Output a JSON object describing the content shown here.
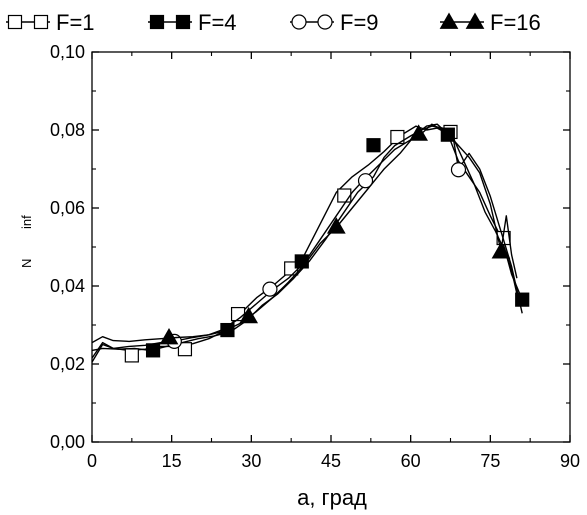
{
  "chart_data": {
    "type": "line",
    "xlabel": "a, град",
    "ylabel_fragments": [
      "N",
      "inf"
    ],
    "xlim": [
      0,
      90
    ],
    "ylim": [
      0,
      0.1
    ],
    "x_ticks": [
      0,
      15,
      30,
      45,
      60,
      75,
      90
    ],
    "x_tick_labels": [
      "0",
      "15",
      "30",
      "45",
      "60",
      "75",
      "90"
    ],
    "y_ticks": [
      0,
      0.02,
      0.04,
      0.06,
      0.08,
      0.1
    ],
    "y_tick_labels": [
      "0,00",
      "0,02",
      "0,04",
      "0,06",
      "0,08",
      "0,10"
    ],
    "grid": false,
    "legend_position": "top",
    "series": [
      {
        "name": "F=1",
        "marker": "open-square",
        "line": [
          [
            0,
            0.0215
          ],
          [
            2,
            0.0255
          ],
          [
            4,
            0.024
          ],
          [
            7,
            0.0235
          ],
          [
            10,
            0.0238
          ],
          [
            13,
            0.0245
          ],
          [
            16,
            0.0245
          ],
          [
            19,
            0.0252
          ],
          [
            22,
            0.0265
          ],
          [
            25,
            0.0285
          ],
          [
            28,
            0.033
          ],
          [
            31,
            0.037
          ],
          [
            34,
            0.04
          ],
          [
            37,
            0.0435
          ],
          [
            40,
            0.048
          ],
          [
            43,
            0.056
          ],
          [
            46,
            0.064
          ],
          [
            49,
            0.068
          ],
          [
            52,
            0.071
          ],
          [
            55,
            0.0745
          ],
          [
            58,
            0.0785
          ],
          [
            61,
            0.081
          ],
          [
            63,
            0.08
          ],
          [
            65,
            0.0805
          ],
          [
            67,
            0.079
          ],
          [
            69,
            0.072
          ],
          [
            71,
            0.068
          ],
          [
            73,
            0.064
          ],
          [
            75,
            0.058
          ],
          [
            77,
            0.0525
          ],
          [
            79,
            0.044
          ],
          [
            80,
            0.038
          ]
        ],
        "markers": [
          [
            7.5,
            0.0222
          ],
          [
            17.5,
            0.0238
          ],
          [
            27.5,
            0.0328
          ],
          [
            37.5,
            0.0445
          ],
          [
            47.5,
            0.0632
          ],
          [
            57.5,
            0.0782
          ],
          [
            67.5,
            0.0795
          ],
          [
            77.5,
            0.0523
          ]
        ]
      },
      {
        "name": "F=4",
        "marker": "filled-square",
        "line": [
          [
            0,
            0.0235
          ],
          [
            2,
            0.024
          ],
          [
            5,
            0.0238
          ],
          [
            8,
            0.024
          ],
          [
            11,
            0.0235
          ],
          [
            14,
            0.0245
          ],
          [
            17,
            0.0255
          ],
          [
            20,
            0.0265
          ],
          [
            23,
            0.0272
          ],
          [
            26,
            0.0282
          ],
          [
            29,
            0.031
          ],
          [
            32,
            0.035
          ],
          [
            35,
            0.038
          ],
          [
            38,
            0.042
          ],
          [
            41,
            0.0465
          ],
          [
            44,
            0.052
          ],
          [
            47,
            0.058
          ],
          [
            50,
            0.064
          ],
          [
            53,
            0.068
          ],
          [
            55,
            0.073
          ],
          [
            57,
            0.076
          ],
          [
            60,
            0.0785
          ],
          [
            62,
            0.08
          ],
          [
            64,
            0.081
          ],
          [
            66,
            0.0805
          ],
          [
            68,
            0.078
          ],
          [
            70,
            0.072
          ],
          [
            72,
            0.066
          ],
          [
            74,
            0.059
          ],
          [
            76,
            0.054
          ],
          [
            78,
            0.048
          ],
          [
            79,
            0.043
          ],
          [
            81,
            0.0365
          ]
        ],
        "markers": [
          [
            11.5,
            0.0235
          ],
          [
            25.5,
            0.0287
          ],
          [
            39.5,
            0.0463
          ],
          [
            53,
            0.0761
          ],
          [
            67,
            0.0788
          ],
          [
            81,
            0.0365
          ]
        ]
      },
      {
        "name": "F=9",
        "marker": "open-circle",
        "line": [
          [
            0,
            0.0205
          ],
          [
            2,
            0.025
          ],
          [
            4,
            0.024
          ],
          [
            7,
            0.0245
          ],
          [
            10,
            0.0248
          ],
          [
            13,
            0.0255
          ],
          [
            16,
            0.026
          ],
          [
            19,
            0.0268
          ],
          [
            22,
            0.0275
          ],
          [
            25,
            0.029
          ],
          [
            28,
            0.032
          ],
          [
            31,
            0.0355
          ],
          [
            34,
            0.039
          ],
          [
            37,
            0.042
          ],
          [
            40,
            0.046
          ],
          [
            43,
            0.052
          ],
          [
            46,
            0.058
          ],
          [
            49,
            0.064
          ],
          [
            51,
            0.067
          ],
          [
            54,
            0.071
          ],
          [
            57,
            0.075
          ],
          [
            60,
            0.0775
          ],
          [
            62,
            0.079
          ],
          [
            64,
            0.0815
          ],
          [
            66,
            0.08
          ],
          [
            68,
            0.078
          ],
          [
            69,
            0.07
          ],
          [
            71,
            0.074
          ],
          [
            73,
            0.07
          ],
          [
            75,
            0.063
          ],
          [
            77,
            0.054
          ],
          [
            79,
            0.045
          ],
          [
            81,
            0.033
          ]
        ],
        "markers": [
          [
            15.5,
            0.0258
          ],
          [
            33.5,
            0.0392
          ],
          [
            51.5,
            0.067
          ],
          [
            69,
            0.0698
          ]
        ]
      },
      {
        "name": "F=16",
        "marker": "filled-triangle",
        "line": [
          [
            0,
            0.0255
          ],
          [
            2,
            0.027
          ],
          [
            4,
            0.026
          ],
          [
            7,
            0.0258
          ],
          [
            10,
            0.0262
          ],
          [
            13,
            0.0265
          ],
          [
            16,
            0.0268
          ],
          [
            19,
            0.027
          ],
          [
            22,
            0.0275
          ],
          [
            25,
            0.0285
          ],
          [
            28,
            0.0305
          ],
          [
            31,
            0.0335
          ],
          [
            34,
            0.037
          ],
          [
            37,
            0.041
          ],
          [
            40,
            0.0455
          ],
          [
            43,
            0.051
          ],
          [
            46,
            0.055
          ],
          [
            49,
            0.06
          ],
          [
            52,
            0.065
          ],
          [
            55,
            0.07
          ],
          [
            58,
            0.074
          ],
          [
            61,
            0.079
          ],
          [
            63,
            0.081
          ],
          [
            65,
            0.0815
          ],
          [
            67,
            0.079
          ],
          [
            69,
            0.076
          ],
          [
            71,
            0.073
          ],
          [
            73,
            0.069
          ],
          [
            75,
            0.061
          ],
          [
            77,
            0.049
          ],
          [
            78,
            0.058
          ],
          [
            79,
            0.048
          ],
          [
            80,
            0.042
          ]
        ],
        "markers": [
          [
            14.5,
            0.0268
          ],
          [
            29.5,
            0.0322
          ],
          [
            46,
            0.0552
          ],
          [
            61.5,
            0.079
          ],
          [
            77,
            0.0488
          ]
        ]
      }
    ]
  }
}
